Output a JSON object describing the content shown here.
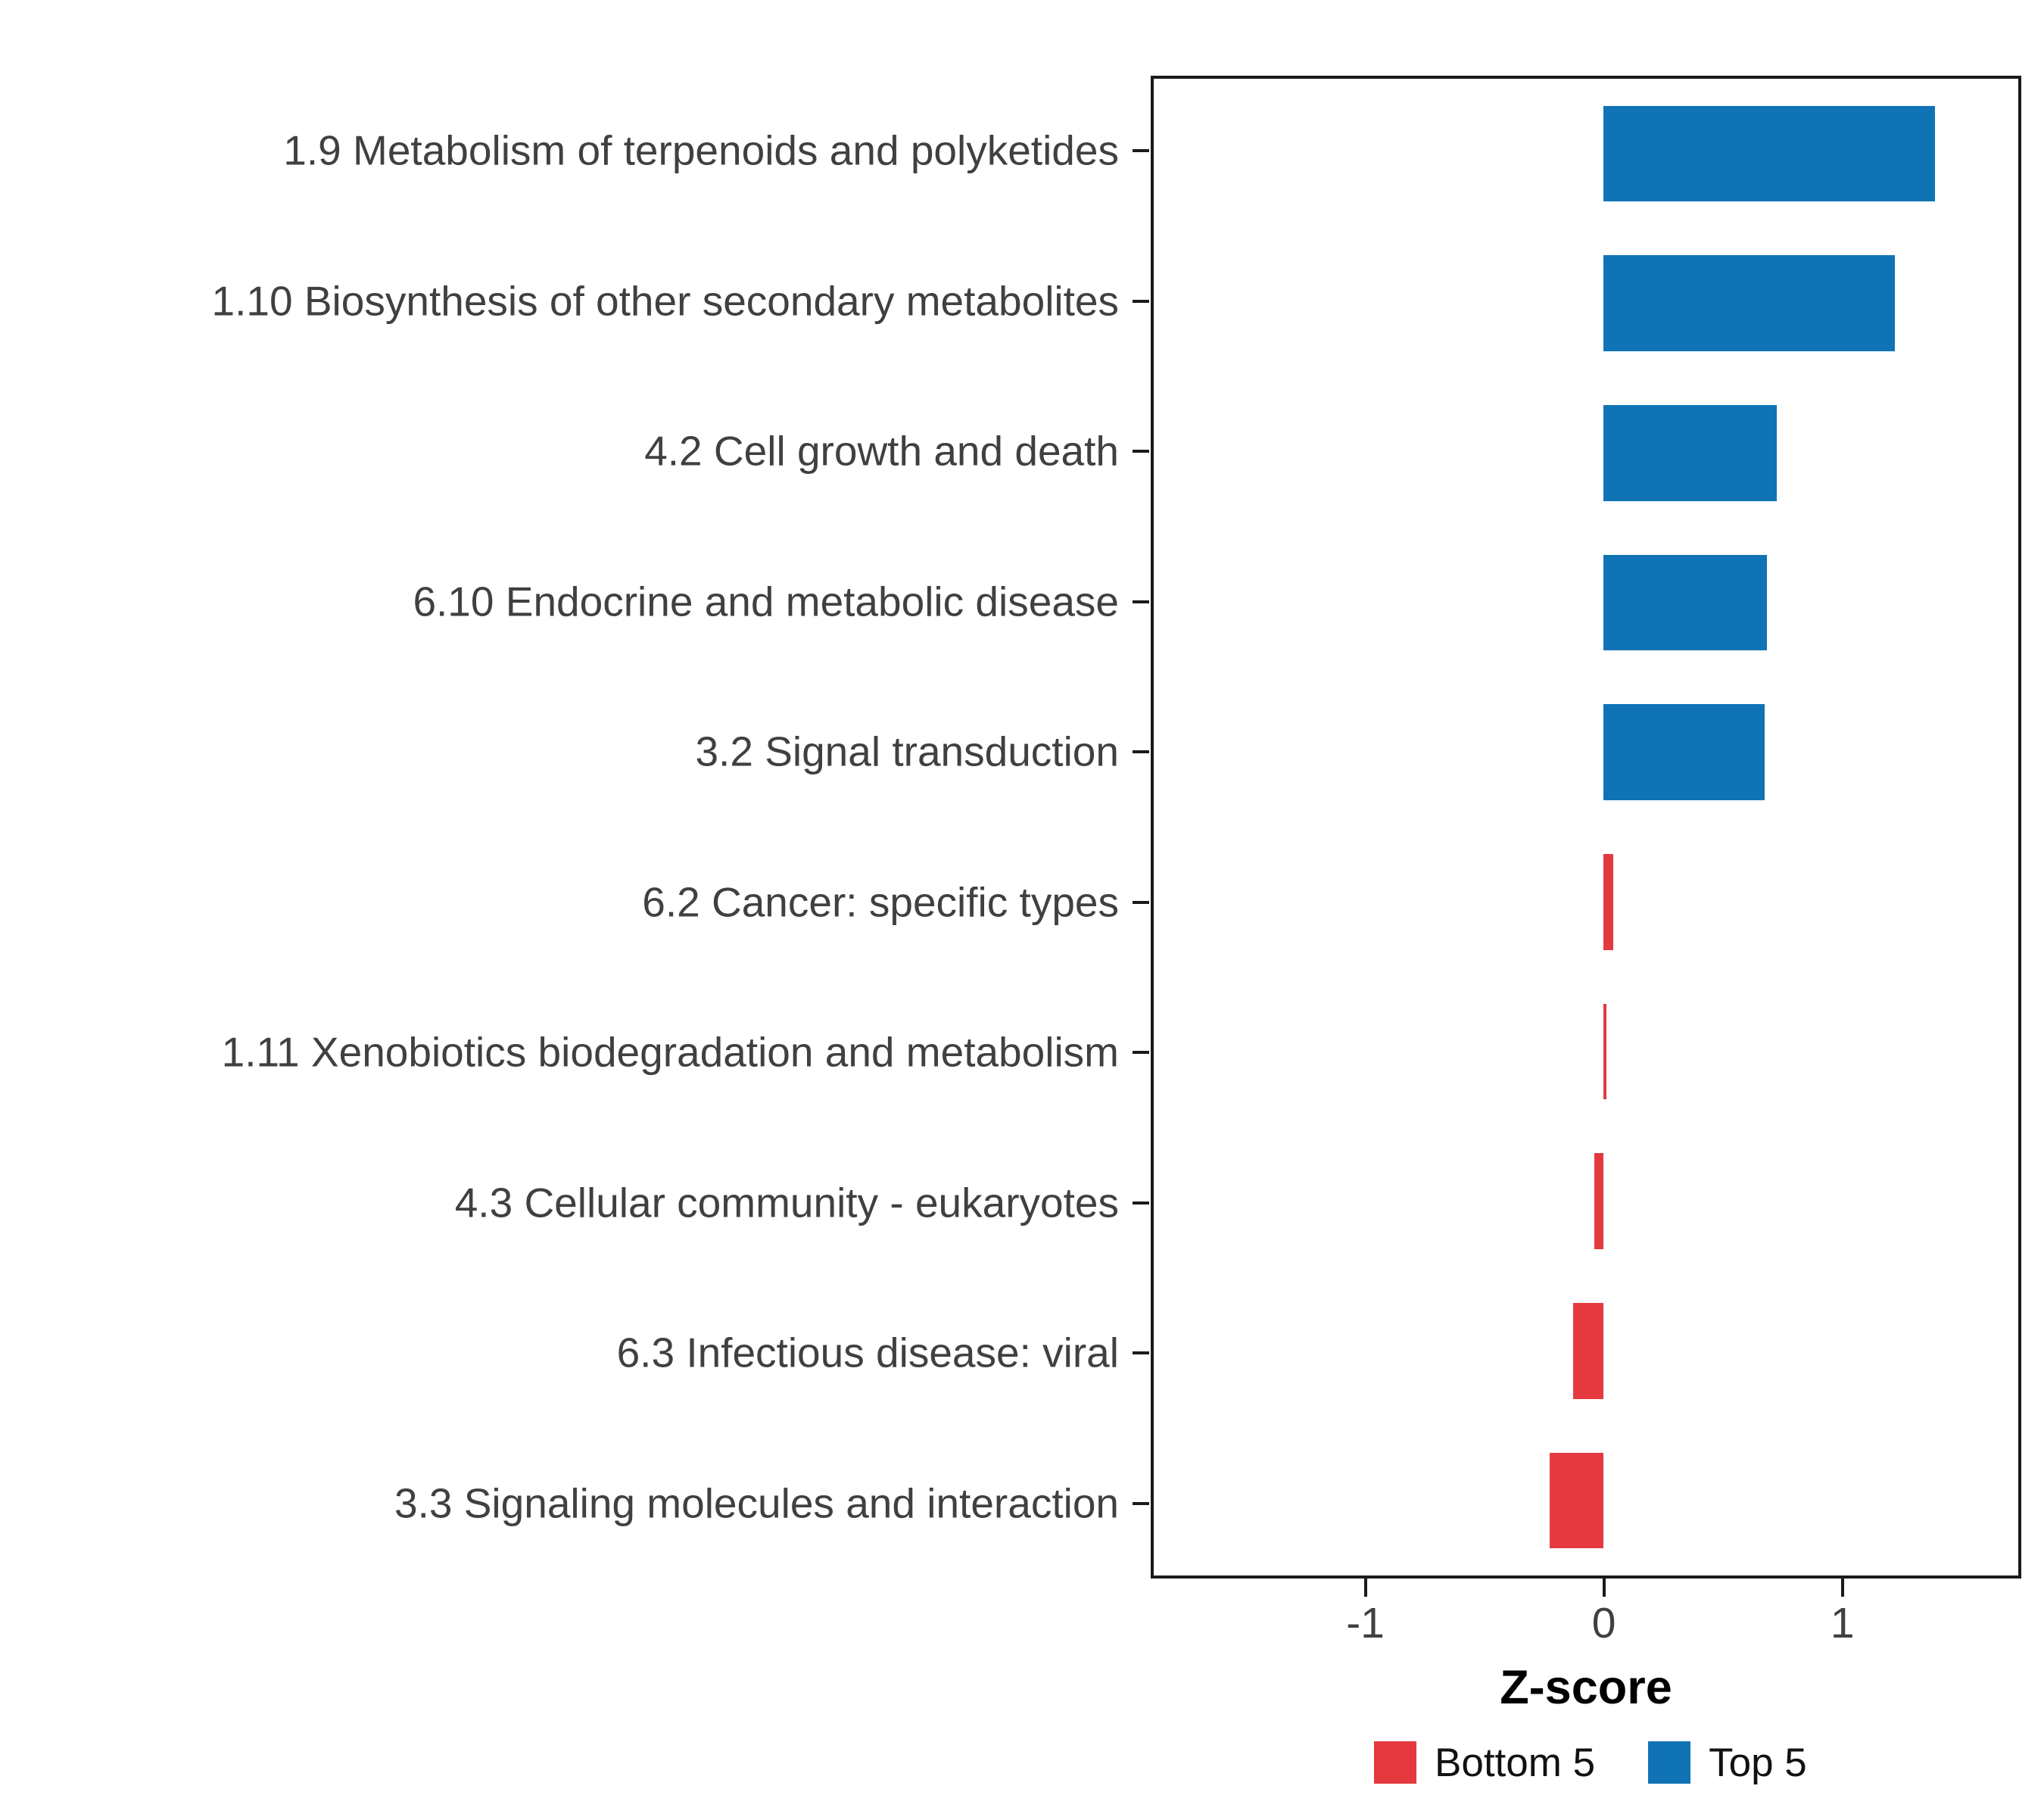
{
  "chart_data": {
    "type": "bar",
    "orientation": "horizontal",
    "title": "",
    "xlabel": "Z-score",
    "ylabel": "",
    "xlim": [
      -1.9,
      1.75
    ],
    "x_ticks": [
      -1,
      0,
      1
    ],
    "grid": false,
    "categories": [
      "1.9 Metabolism of terpenoids and polyketides",
      "1.10 Biosynthesis of other secondary metabolites",
      "4.2 Cell growth and death",
      "6.10 Endocrine and metabolic disease",
      "3.2 Signal transduction",
      "6.2 Cancer: specific types",
      "1.11 Xenobiotics biodegradation and metabolism",
      "4.3 Cellular community - eukaryotes",
      "6.3 Infectious disease: viral",
      "3.3 Signaling molecules and interaction"
    ],
    "values": [
      1.4,
      1.23,
      0.73,
      0.69,
      0.68,
      0.04,
      0.01,
      -0.04,
      -0.13,
      -0.23
    ],
    "groups": [
      "Top 5",
      "Top 5",
      "Top 5",
      "Top 5",
      "Top 5",
      "Bottom 5",
      "Bottom 5",
      "Bottom 5",
      "Bottom 5",
      "Bottom 5"
    ],
    "legend": {
      "position": "bottom-right",
      "items": [
        {
          "label": "Bottom 5",
          "color": "#E4393F"
        },
        {
          "label": "Top 5",
          "color": "#1073B5"
        }
      ]
    }
  }
}
